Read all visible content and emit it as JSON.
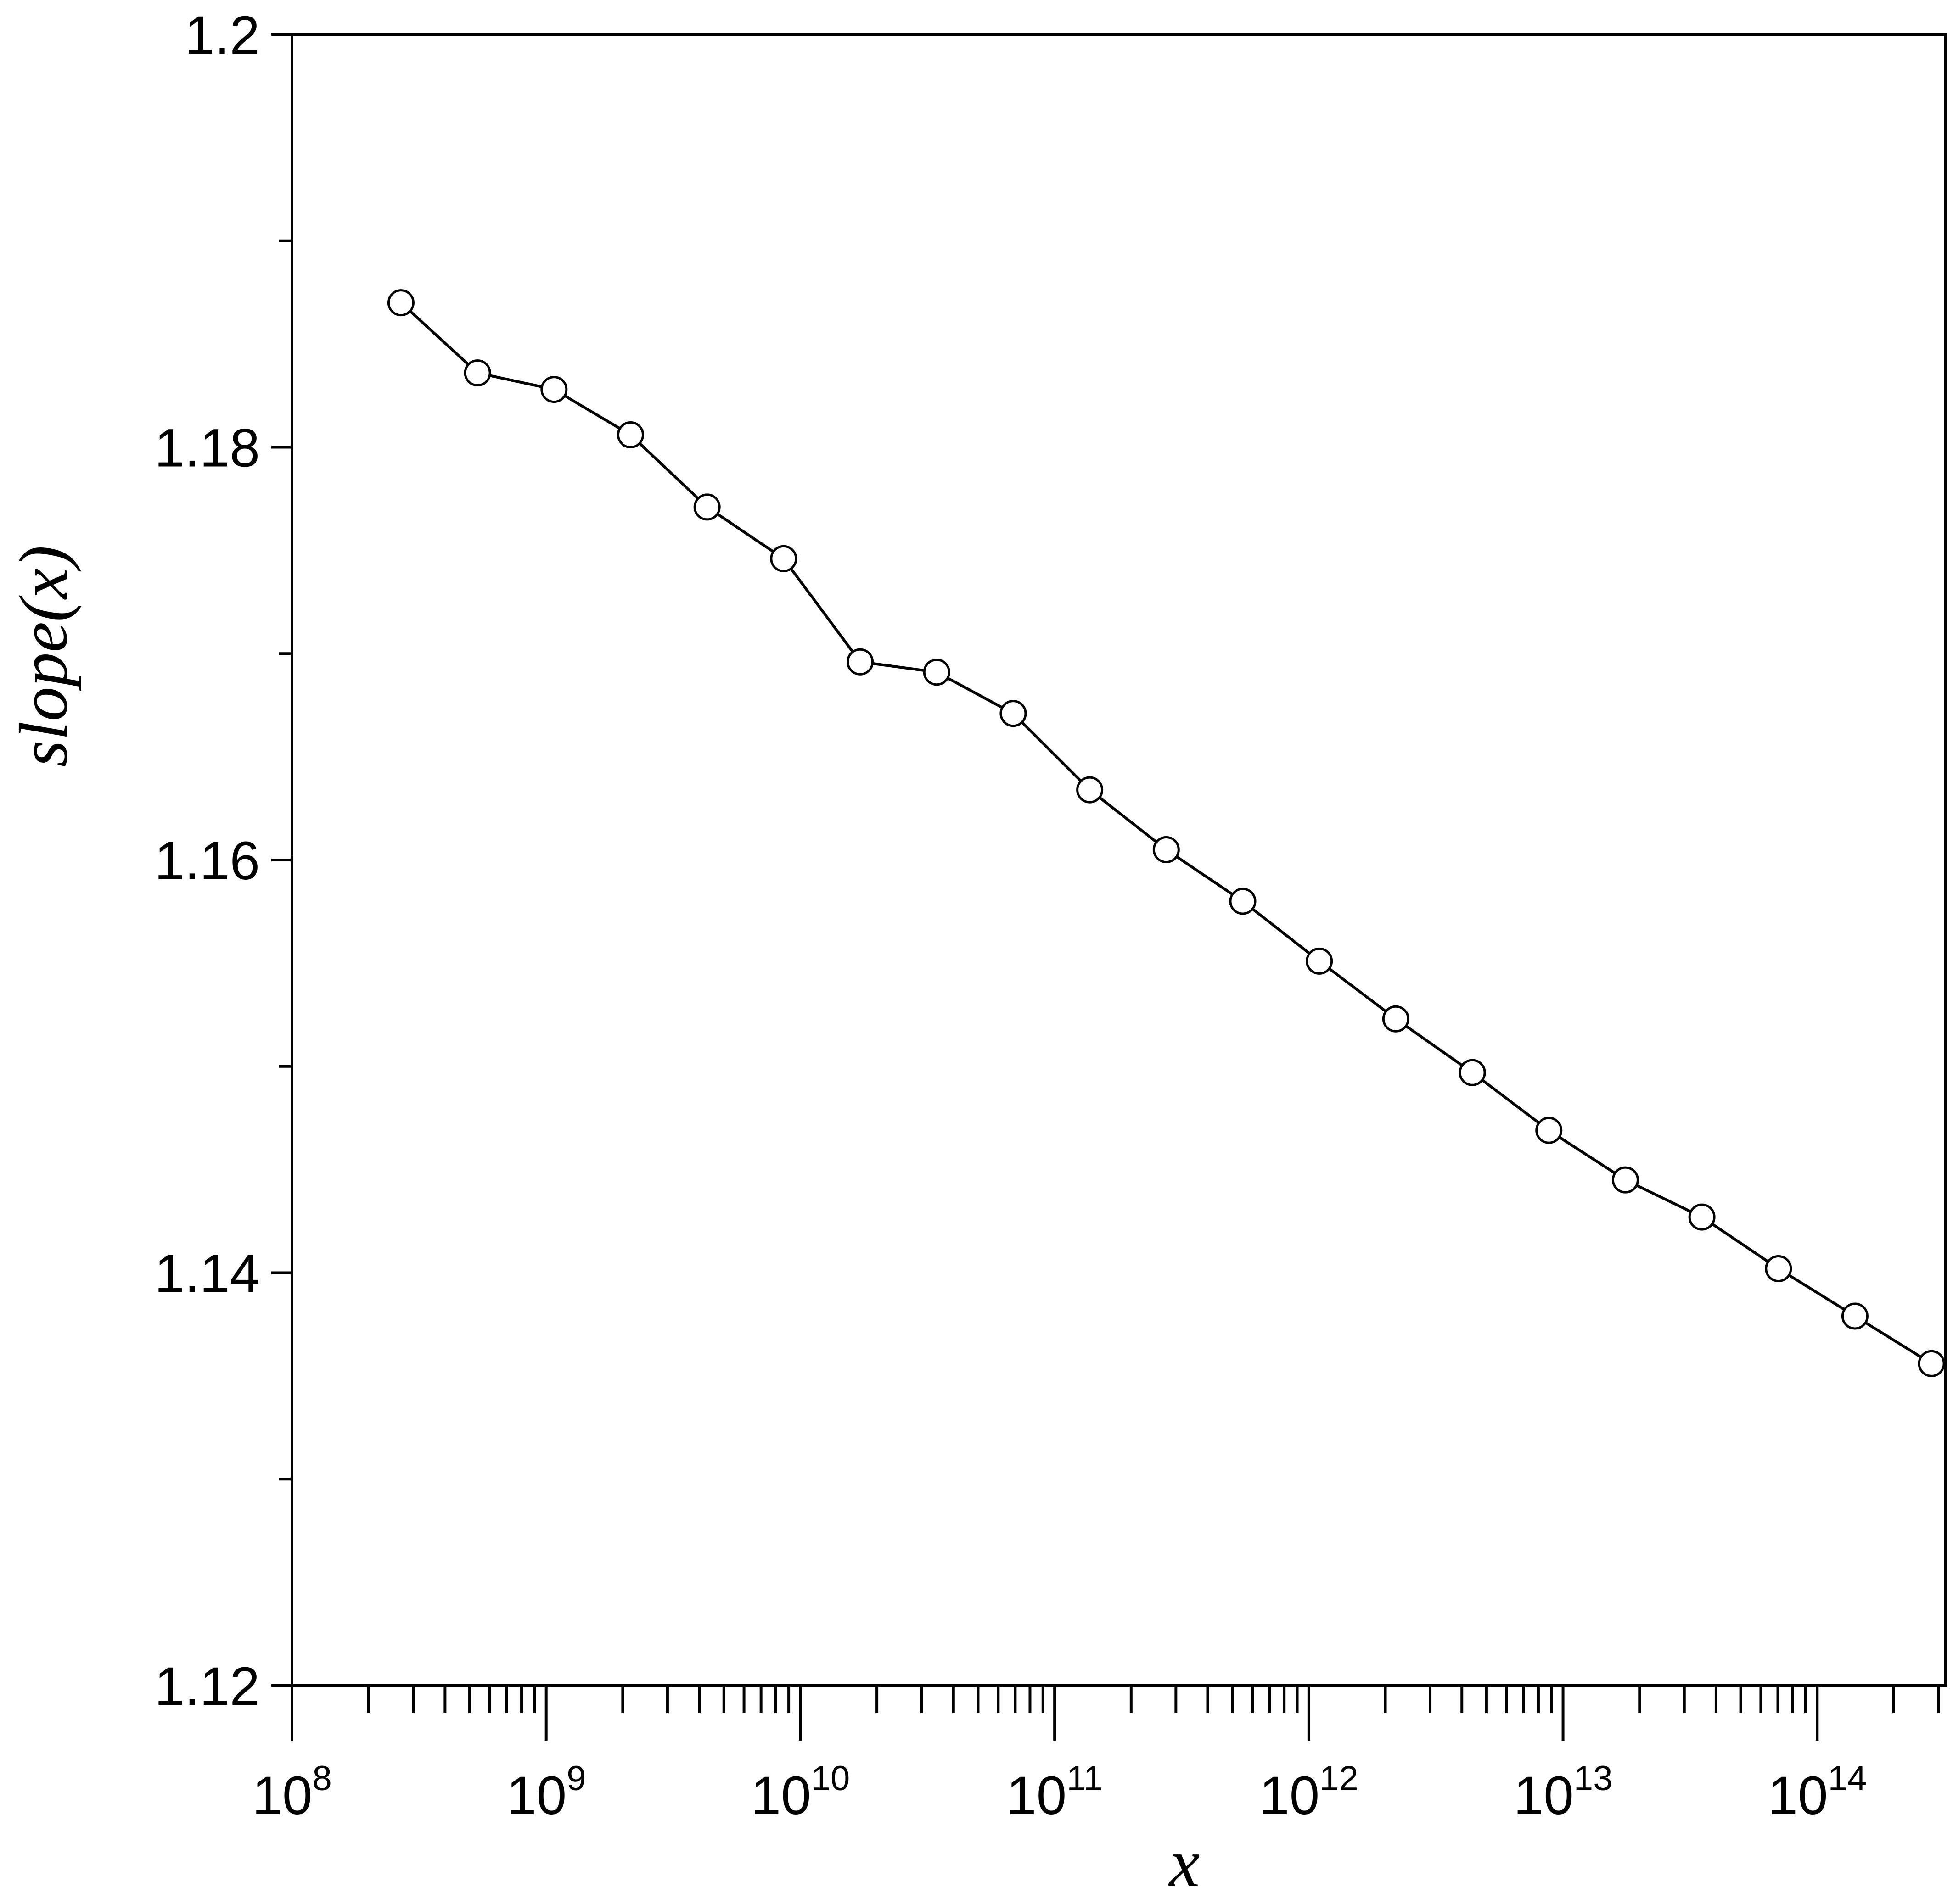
{
  "chart_data": {
    "type": "line",
    "xlabel": "x",
    "ylabel": "slope(x)",
    "x_scale": "log",
    "xlim": [
      100000000,
      320000000000000
    ],
    "ylim": [
      1.12,
      1.2
    ],
    "x_ticks": [
      {
        "base": "10",
        "exp": "8",
        "value": 100000000
      },
      {
        "base": "10",
        "exp": "9",
        "value": 1000000000
      },
      {
        "base": "10",
        "exp": "10",
        "value": 10000000000
      },
      {
        "base": "10",
        "exp": "11",
        "value": 100000000000
      },
      {
        "base": "10",
        "exp": "12",
        "value": 1000000000000
      },
      {
        "base": "10",
        "exp": "13",
        "value": 10000000000000
      },
      {
        "base": "10",
        "exp": "14",
        "value": 100000000000000
      }
    ],
    "y_ticks": [
      {
        "label": "1.12",
        "value": 1.12
      },
      {
        "label": "1.14",
        "value": 1.14
      },
      {
        "label": "1.16",
        "value": 1.16
      },
      {
        "label": "1.18",
        "value": 1.18
      },
      {
        "label": "1.2",
        "value": 1.2
      }
    ],
    "y_minor_ticks": [
      1.13,
      1.15,
      1.17,
      1.19
    ],
    "grid": false,
    "marker": "open-circle",
    "color": "#000000",
    "series": [
      {
        "x": [
          268435456,
          536870912,
          1073741824,
          2147483648,
          4294967296,
          8589934592,
          17179869184,
          34359738368,
          68719476736,
          137438953472,
          274877906944,
          549755813888,
          1099511627776,
          2199023255552,
          4398046511104,
          8796093022208,
          17592186044416,
          35184372088832,
          70368744177664,
          140737488355328,
          281474976710656
        ],
        "y": [
          1.187,
          1.1836,
          1.1828,
          1.1806,
          1.1771,
          1.1746,
          1.1696,
          1.1691,
          1.1671,
          1.1634,
          1.1605,
          1.158,
          1.1551,
          1.1523,
          1.1497,
          1.1469,
          1.1445,
          1.1427,
          1.1402,
          1.1379,
          1.1356
        ]
      }
    ]
  }
}
